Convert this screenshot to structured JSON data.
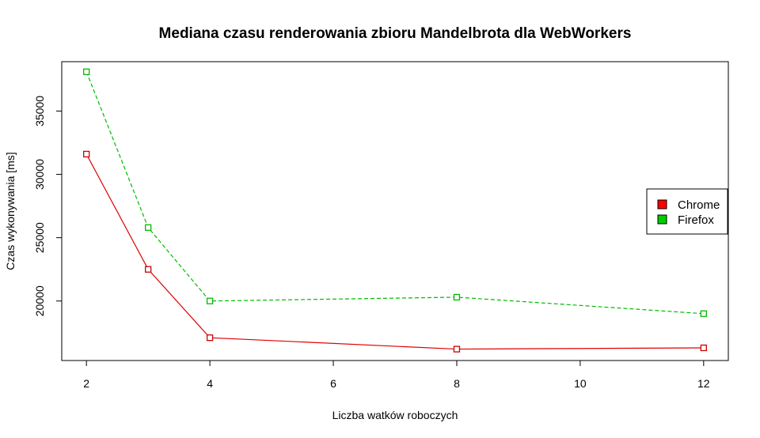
{
  "chart_data": {
    "type": "line",
    "title": "Mediana czasu renderowania zbioru Mandelbrota dla WebWorkers",
    "xlabel": "Liczba watków roboczych",
    "ylabel": "Czas wykonywania [ms]",
    "xlim": [
      1.6,
      12.4
    ],
    "ylim": [
      15300,
      38900
    ],
    "x_ticks": [
      2,
      4,
      6,
      8,
      10,
      12
    ],
    "y_ticks": [
      20000,
      25000,
      30000,
      35000
    ],
    "grid": false,
    "legend_position": "right",
    "series": [
      {
        "name": "Chrome",
        "color": "#DF0000",
        "marker_color": "#CC0000",
        "legend_fill": "#FF0000",
        "line_style": "solid",
        "x": [
          2,
          3,
          4,
          8,
          12
        ],
        "y": [
          31600,
          22500,
          17100,
          16200,
          16300
        ]
      },
      {
        "name": "Firefox",
        "color": "#00BB00",
        "marker_color": "#00BB00",
        "legend_fill": "#00CD00",
        "line_style": "dashed",
        "x": [
          2,
          3,
          4,
          8,
          12
        ],
        "y": [
          38100,
          25800,
          20000,
          20300,
          19000
        ]
      }
    ]
  }
}
